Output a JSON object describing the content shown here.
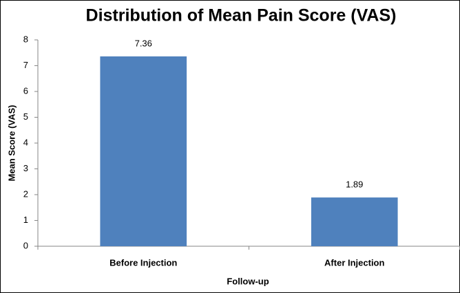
{
  "chart_data": {
    "type": "bar",
    "title": "Distribution of Mean Pain Score (VAS)",
    "x_label": "Follow-up",
    "y_label": "Mean Score (VAS)",
    "categories": [
      "Before Injection",
      "After Injection"
    ],
    "values": [
      7.36,
      1.89
    ],
    "color": "#4f81bd",
    "ylim": [
      0,
      8
    ],
    "yticks": [
      0,
      1,
      2,
      3,
      4,
      5,
      6,
      7,
      8
    ],
    "grid": false
  }
}
